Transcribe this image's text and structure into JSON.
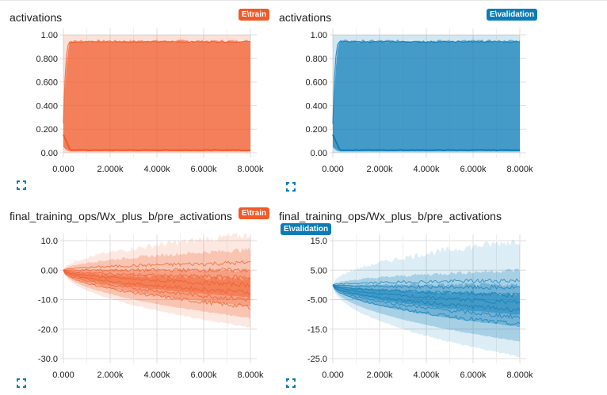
{
  "colors": {
    "train": "#f05a28",
    "validation": "#0b7cb6",
    "grid": "#dcdcdc"
  },
  "charts": [
    {
      "title": "activations",
      "run_label": "E\\train",
      "run": "train",
      "expand_icon": "expand-icon"
    },
    {
      "title": "activations",
      "run_label": "E\\validation",
      "run": "validation",
      "expand_icon": "expand-icon"
    },
    {
      "title": "final_training_ops/Wx_plus_b/pre_activations",
      "run_label": "E\\train",
      "run": "train",
      "expand_icon": "expand-icon"
    },
    {
      "title": "final_training_ops/Wx_plus_b/pre_activations",
      "run_label": "E\\validation",
      "run": "validation",
      "expand_icon": "expand-icon"
    }
  ],
  "chart_data": [
    {
      "type": "area",
      "title": "activations",
      "series": [
        {
          "name": "E\\train"
        }
      ],
      "x_ticks": [
        "0.000",
        "2.000k",
        "4.000k",
        "6.000k",
        "8.000k"
      ],
      "y_ticks": [
        "0.00",
        "0.200",
        "0.400",
        "0.600",
        "0.800",
        "1.00"
      ],
      "xlim": [
        0,
        8000
      ],
      "ylim": [
        0,
        1
      ],
      "percentile_bands": [
        [
          0,
          1.0
        ],
        [
          0.01,
          0.95
        ],
        [
          0.02,
          0.94
        ]
      ],
      "start_band": [
        0.05,
        0.25
      ],
      "converge_step": 300,
      "grid": true
    },
    {
      "type": "area",
      "title": "activations",
      "series": [
        {
          "name": "E\\validation"
        }
      ],
      "x_ticks": [
        "0.000",
        "2.000k",
        "4.000k",
        "6.000k",
        "8.000k"
      ],
      "y_ticks": [
        "0.00",
        "0.200",
        "0.400",
        "0.600",
        "0.800",
        "1.00"
      ],
      "xlim": [
        0,
        8000
      ],
      "ylim": [
        0,
        1
      ],
      "percentile_bands": [
        [
          0,
          1.0
        ],
        [
          0.01,
          0.95
        ],
        [
          0.02,
          0.94
        ]
      ],
      "start_band": [
        0.05,
        0.25
      ],
      "converge_step": 300,
      "grid": true
    },
    {
      "type": "area",
      "title": "final_training_ops/Wx_plus_b/pre_activations",
      "series": [
        {
          "name": "E\\train"
        }
      ],
      "x_ticks": [
        "0.000",
        "2.000k",
        "4.000k",
        "6.000k",
        "8.000k"
      ],
      "y_ticks": [
        "-30.0",
        "-20.0",
        "-10.0",
        "0.00",
        "10.0"
      ],
      "xlim": [
        0,
        8000
      ],
      "ylim": [
        -30,
        10
      ],
      "final_bands": [
        [
          -19,
          12
        ],
        [
          -16,
          7
        ],
        [
          -12,
          0
        ],
        [
          -9,
          -3
        ]
      ],
      "median_final": -5,
      "grid": true
    },
    {
      "type": "area",
      "title": "final_training_ops/Wx_plus_b/pre_activations",
      "series": [
        {
          "name": "E\\validation"
        }
      ],
      "x_ticks": [
        "0.000",
        "2.000k",
        "4.000k",
        "6.000k",
        "8.000k"
      ],
      "y_ticks": [
        "-25.0",
        "-15.0",
        "-5.00",
        "5.00",
        "15.0"
      ],
      "xlim": [
        0,
        8000
      ],
      "ylim": [
        -25,
        15
      ],
      "final_bands": [
        [
          -24,
          15
        ],
        [
          -19,
          5
        ],
        [
          -14,
          0
        ],
        [
          -10,
          -3
        ]
      ],
      "median_final": -6,
      "grid": true
    }
  ]
}
